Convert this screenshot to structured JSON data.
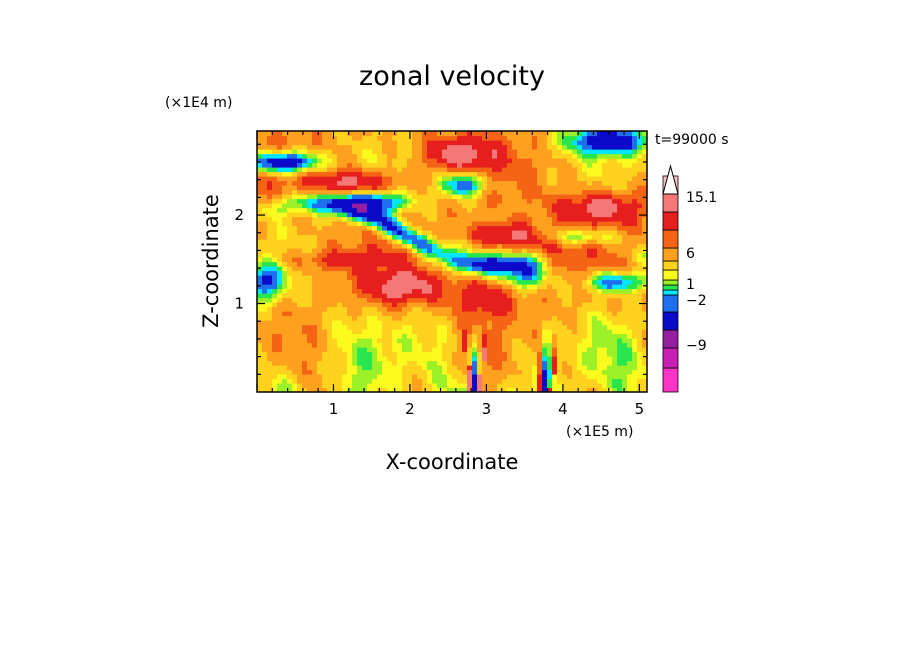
{
  "chart_data": {
    "type": "heatmap",
    "title": "zonal velocity",
    "xlabel": "X-coordinate",
    "ylabel": "Z-coordinate",
    "x_unit": "(×1E5 m)",
    "y_unit": "(×1E4 m)",
    "time_label": "t=99000 s",
    "xlim": [
      0.0,
      5.1
    ],
    "ylim": [
      0.0,
      2.95
    ],
    "x_ticks": [
      "1",
      "2",
      "3",
      "4",
      "5"
    ],
    "y_ticks": [
      "1",
      "2"
    ],
    "colorbar": {
      "tick_labels": [
        "15.1",
        "6",
        "1",
        "−2",
        "−9"
      ],
      "colors": [
        "#ff33c8",
        "#c81eb4",
        "#961ea0",
        "#0a0ac8",
        "#1e6ef0",
        "#00e6ff",
        "#28e650",
        "#9bf028",
        "#fafa1e",
        "#ffd21e",
        "#ffa01e",
        "#f56414",
        "#e61e1e",
        "#f57878",
        "#ffbebe",
        "#ffffff"
      ]
    },
    "features": {
      "mountain_peaks_x": [
        2.85,
        3.78
      ]
    }
  }
}
